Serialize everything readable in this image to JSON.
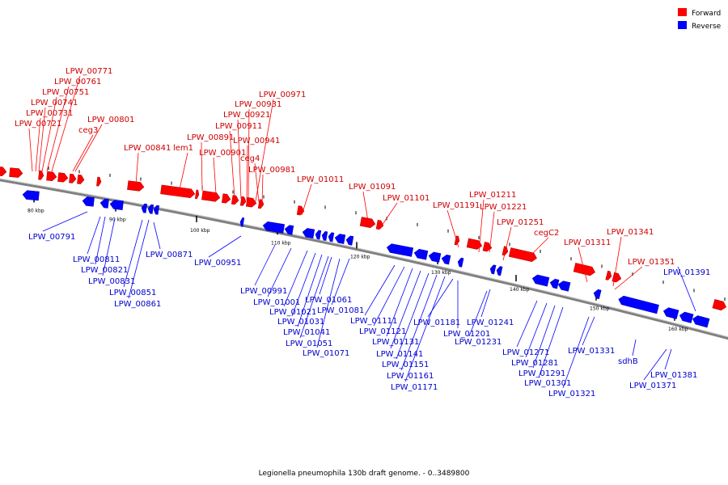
{
  "caption": "Legionella pneumophila 130b draft genome. - 0..3489800",
  "legend": [
    {
      "label": "Forward",
      "color": "#ff0000"
    },
    {
      "label": "Reverse",
      "color": "#0000ff"
    }
  ],
  "colors": {
    "forward": "#ff0000",
    "reverse": "#0000ff",
    "forward_text": "#cc0000",
    "reverse_text": "#0000cc",
    "backbone": "#808080"
  },
  "ticks": [
    "80 kbp",
    "90 kbp",
    "100 kbp",
    "110 kbp",
    "120 kbp",
    "130 kbp",
    "140 kbp",
    "150 kbp",
    "160 kbp"
  ],
  "forward_labels": [
    "LPW_00771",
    "LPW_00761",
    "LPW_00751",
    "LPW_00741",
    "LPW_00731",
    "LPW_00721",
    "LPW_00801",
    "ceg3",
    "LPW_00841",
    "lem1",
    "LPW_00891",
    "LPW_00901",
    "LPW_00971",
    "LPW_00931",
    "LPW_00921",
    "LPW_00911",
    "LPW_00941",
    "ceg4",
    "LPW_00981",
    "LPW_01011",
    "LPW_01091",
    "LPW_01101",
    "LPW_01191",
    "LPW_01211",
    "LPW_01221",
    "LPW_01251",
    "cegC2",
    "LPW_01311",
    "LPW_01341",
    "LPW_01351"
  ],
  "reverse_labels": [
    "LPW_00791",
    "LPW_00811",
    "LPW_00821",
    "LPW_00831",
    "LPW_00851",
    "LPW_00861",
    "LPW_00871",
    "LPW_00951",
    "LPW_00991",
    "LPW_01001",
    "LPW_01021",
    "LPW_01031",
    "LPW_01041",
    "LPW_01051",
    "LPW_01061",
    "LPW_01071",
    "LPW_01081",
    "LPW_01111",
    "LPW_01121",
    "LPW_01131",
    "LPW_01141",
    "LPW_01151",
    "LPW_01161",
    "LPW_01171",
    "LPW_01181",
    "LPW_01201",
    "LPW_01241",
    "LPW_01231",
    "LPW_01271",
    "LPW_01281",
    "LPW_01291",
    "LPW_01301",
    "LPW_01321",
    "LPW_01331",
    "sdhB",
    "LPW_01371",
    "LPW_01381",
    "LPW_01391"
  ]
}
